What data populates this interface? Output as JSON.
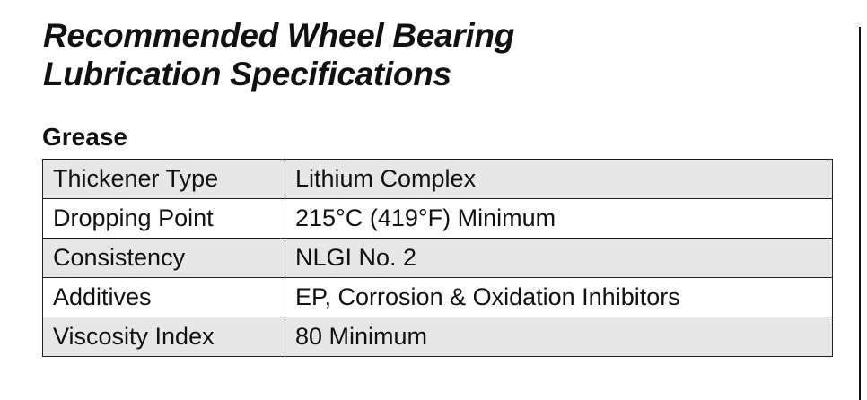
{
  "header": {
    "title": [
      "Recommended Wheel Bearing",
      "Lubrication Specifications"
    ]
  },
  "section": {
    "heading": "Grease"
  },
  "table": {
    "rows": [
      [
        "Thickener Type",
        "Lithium Complex"
      ],
      [
        "Dropping Point",
        "215°C (419°F) Minimum"
      ],
      [
        "Consistency",
        "NLGI No. 2"
      ],
      [
        "Additives",
        "EP, Corrosion & Oxidation Inhibitors"
      ],
      [
        "Viscosity Index",
        "80 Minimum"
      ]
    ]
  }
}
